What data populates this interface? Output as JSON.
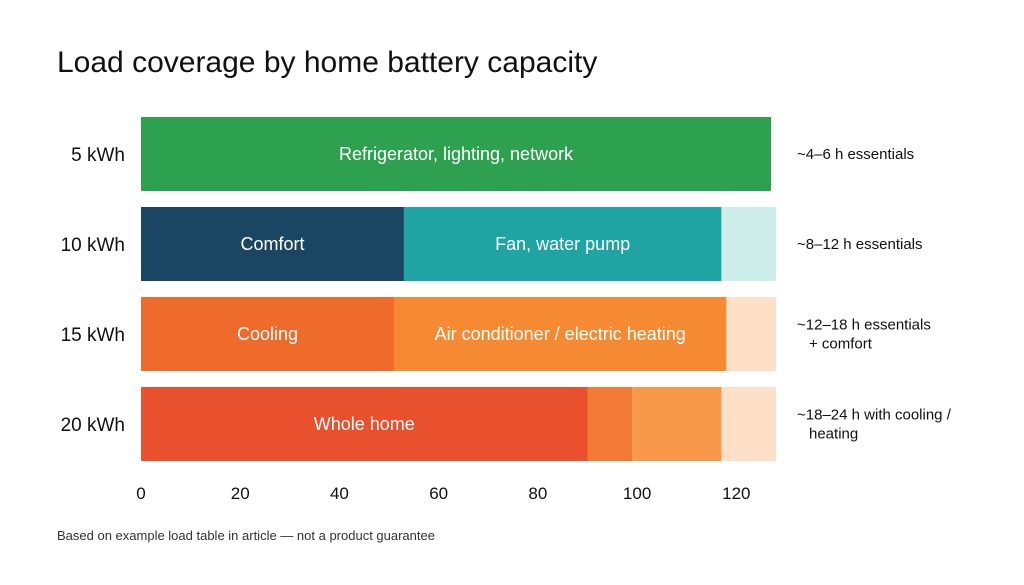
{
  "chart_data": {
    "type": "bar",
    "orientation": "horizontal",
    "stacked": true,
    "title": "Load coverage by home battery capacity",
    "footnote": "Based on example load table in article — not a product guarantee",
    "xlabel": "",
    "ylabel": "",
    "xlim": [
      0,
      128
    ],
    "xticks": [
      0,
      20,
      40,
      60,
      80,
      100,
      120
    ],
    "grid": false,
    "categories": [
      "5 kWh",
      "10 kWh",
      "15 kWh",
      "20 kWh"
    ],
    "bars": [
      {
        "category": "5 kWh",
        "annotation": [
          "~4–6 h essentials"
        ],
        "segments": [
          {
            "label": "Refrigerator, lighting, network",
            "start": 0,
            "end": 127,
            "color": "#2da14f"
          }
        ]
      },
      {
        "category": "10 kWh",
        "annotation": [
          "~8–12 h essentials"
        ],
        "segments": [
          {
            "label": "Comfort",
            "start": 0,
            "end": 53,
            "color": "#1a4663"
          },
          {
            "label": "Fan, water pump",
            "start": 53,
            "end": 117,
            "color": "#1fa3a3"
          },
          {
            "label": "",
            "start": 117,
            "end": 128,
            "color": "#cdeeea"
          }
        ]
      },
      {
        "category": "15 kWh",
        "annotation": [
          "~12–18 h essentials",
          "+ comfort"
        ],
        "segments": [
          {
            "label": "Cooling",
            "start": 0,
            "end": 51,
            "color": "#ef6b2c"
          },
          {
            "label": "Air conditioner / electric heating",
            "start": 51,
            "end": 118,
            "color": "#f58a33"
          },
          {
            "label": "",
            "start": 118,
            "end": 128,
            "color": "#fde0c7"
          }
        ]
      },
      {
        "category": "20 kWh",
        "annotation": [
          "~18–24 h with cooling /",
          "heating"
        ],
        "segments": [
          {
            "label": "Whole home",
            "start": 0,
            "end": 90,
            "color": "#e9502e"
          },
          {
            "label": "",
            "start": 90,
            "end": 99,
            "color": "#f37a36"
          },
          {
            "label": "",
            "start": 99,
            "end": 117,
            "color": "#f8984a"
          },
          {
            "label": "",
            "start": 117,
            "end": 128,
            "color": "#fde0c7"
          }
        ]
      }
    ]
  }
}
